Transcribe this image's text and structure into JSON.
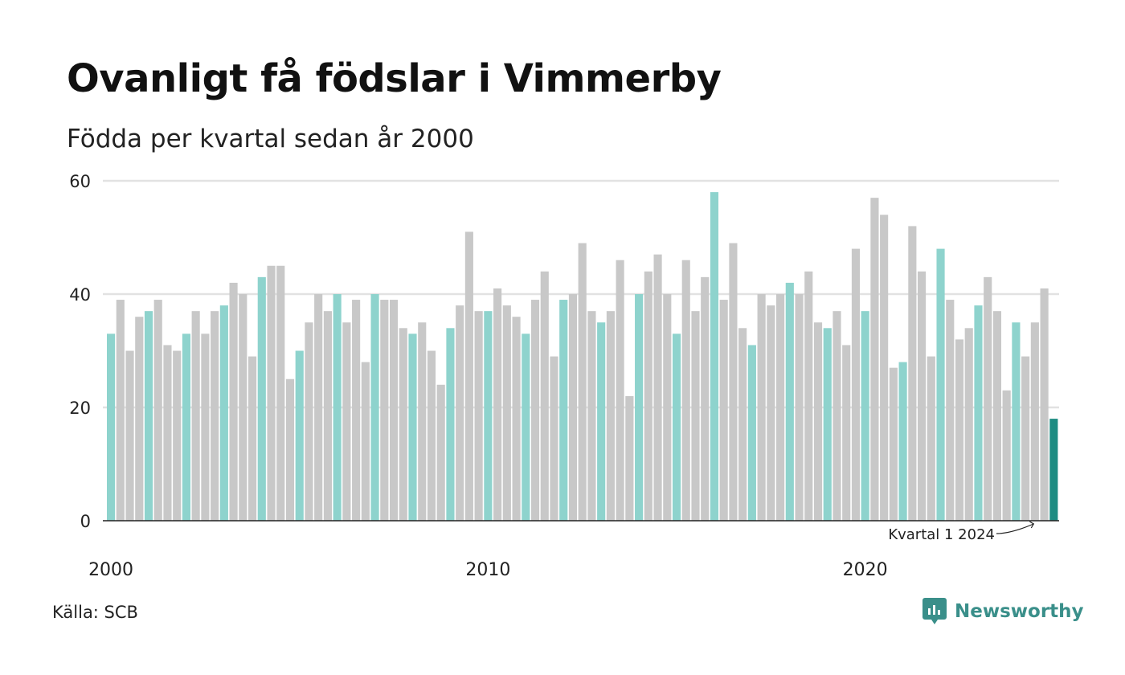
{
  "title": "Ovanligt få födslar i Vimmerby",
  "subtitle": "Födda per kvartal sedan år 2000",
  "source": "Källa: SCB",
  "brand": {
    "name": "Newsworthy",
    "icon": "newsworthy-logo-icon"
  },
  "colors": {
    "bar_default": "#c8c8c8",
    "bar_q1": "#8ed3cd",
    "bar_latest": "#1e8c82",
    "grid": "#e2e2e2",
    "axis": "#222222",
    "brand": "#3a8f8a"
  },
  "chart_data": {
    "type": "bar",
    "title": "Ovanligt få födslar i Vimmerby",
    "subtitle": "Födda per kvartal sedan år 2000",
    "xlabel": "",
    "ylabel": "",
    "ylim": [
      0,
      60
    ],
    "yticks": [
      0,
      20,
      40,
      60
    ],
    "xticks": [
      {
        "label": "2000",
        "index": 0
      },
      {
        "label": "2010",
        "index": 40
      },
      {
        "label": "2020",
        "index": 80
      }
    ],
    "grid": true,
    "start_year": 2000,
    "highlight": "Q1 of each year in teal; latest quarter in dark teal",
    "annotation": {
      "text": "Kvartal 1 2024",
      "index": 100
    },
    "values": [
      33,
      39,
      30,
      36,
      37,
      39,
      31,
      30,
      33,
      37,
      33,
      37,
      38,
      42,
      40,
      29,
      43,
      45,
      45,
      25,
      30,
      35,
      40,
      37,
      40,
      35,
      39,
      28,
      40,
      39,
      39,
      34,
      33,
      35,
      30,
      24,
      34,
      38,
      51,
      37,
      37,
      41,
      38,
      36,
      33,
      39,
      44,
      29,
      39,
      40,
      49,
      37,
      35,
      37,
      46,
      22,
      40,
      44,
      47,
      40,
      33,
      46,
      37,
      43,
      58,
      39,
      49,
      34,
      31,
      40,
      38,
      40,
      42,
      40,
      44,
      35,
      34,
      37,
      31,
      48,
      37,
      57,
      54,
      27,
      28,
      52,
      44,
      29,
      48,
      39,
      32,
      34,
      38,
      43,
      37,
      23,
      35,
      29,
      35,
      41,
      18
    ]
  }
}
